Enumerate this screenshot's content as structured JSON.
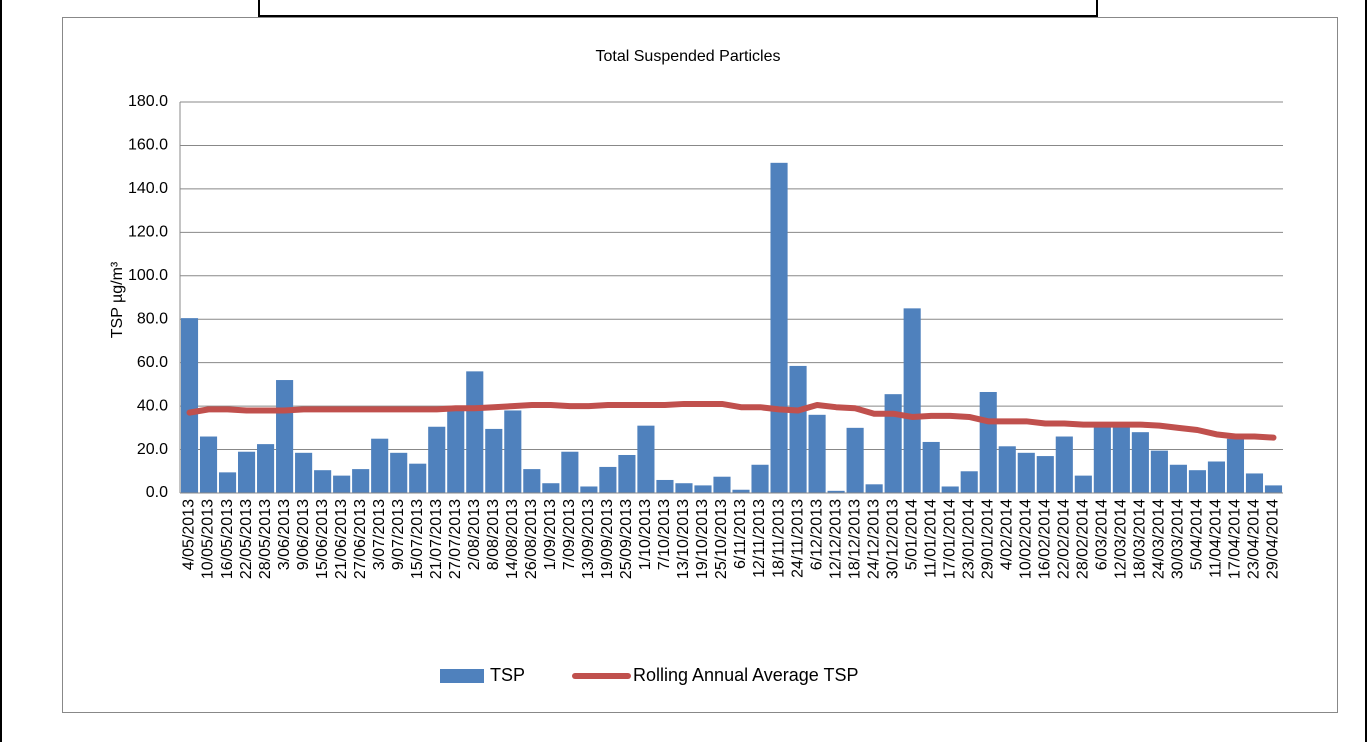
{
  "chart_data": {
    "type": "bar",
    "title": "Total Suspended Particles",
    "y_label": "TSP µg/m³",
    "categories": [
      "4/05/2013",
      "10/05/2013",
      "16/05/2013",
      "22/05/2013",
      "28/05/2013",
      "3/06/2013",
      "9/06/2013",
      "15/06/2013",
      "21/06/2013",
      "27/06/2013",
      "3/07/2013",
      "9/07/2013",
      "15/07/2013",
      "21/07/2013",
      "27/07/2013",
      "2/08/2013",
      "8/08/2013",
      "14/08/2013",
      "26/08/2013",
      "1/09/2013",
      "7/09/2013",
      "13/09/2013",
      "19/09/2013",
      "25/09/2013",
      "1/10/2013",
      "7/10/2013",
      "13/10/2013",
      "19/10/2013",
      "25/10/2013",
      "6/11/2013",
      "12/11/2013",
      "18/11/2013",
      "24/11/2013",
      "6/12/2013",
      "12/12/2013",
      "18/12/2013",
      "24/12/2013",
      "30/12/2013",
      "5/01/2014",
      "11/01/2014",
      "17/01/2014",
      "23/01/2014",
      "29/01/2014",
      "4/02/2014",
      "10/02/2014",
      "16/02/2014",
      "22/02/2014",
      "28/02/2014",
      "6/03/2014",
      "12/03/2014",
      "18/03/2014",
      "24/03/2014",
      "30/03/2014",
      "5/04/2014",
      "11/04/2014",
      "17/04/2014",
      "23/04/2014",
      "29/04/2014"
    ],
    "series": [
      {
        "name": "TSP",
        "type": "bar",
        "color": "#4f81bd",
        "values": [
          80.5,
          26,
          9.5,
          19,
          22.5,
          52,
          18.5,
          10.5,
          8,
          11,
          25,
          18.5,
          13.5,
          30.5,
          38,
          56,
          29.5,
          38,
          11,
          4.5,
          19,
          3,
          12,
          17.5,
          31,
          6,
          4.5,
          3.5,
          7.5,
          1.5,
          13,
          152,
          58.5,
          36,
          1,
          30,
          4,
          45.5,
          85,
          23.5,
          3,
          10,
          46.5,
          21.5,
          18.5,
          17,
          26,
          8,
          31,
          32,
          28,
          19.5,
          13,
          10.5,
          14.5,
          25,
          9,
          3.5
        ]
      },
      {
        "name": "Rolling Annual Average TSP",
        "type": "line",
        "color": "#c0504d",
        "values": [
          37,
          38.5,
          38.5,
          38,
          38,
          38,
          38.5,
          38.5,
          38.5,
          38.5,
          38.5,
          38.5,
          38.5,
          38.5,
          39,
          39,
          39.5,
          40,
          40.5,
          40.5,
          40,
          40,
          40.5,
          40.5,
          40.5,
          40.5,
          41,
          41,
          41,
          39.5,
          39.5,
          38.5,
          38,
          40.5,
          39.5,
          39,
          36.5,
          36.5,
          35,
          35.5,
          35.5,
          35,
          33,
          33,
          33,
          32,
          32,
          31.5,
          31.5,
          31.5,
          31.5,
          31,
          30,
          29,
          27,
          26,
          26,
          25.5
        ]
      }
    ],
    "ylim": [
      0,
      180
    ],
    "yticks": [
      {
        "value": 0,
        "label": "0.0"
      },
      {
        "value": 20,
        "label": "20.0"
      },
      {
        "value": 40,
        "label": "40.0"
      },
      {
        "value": 60,
        "label": "60.0"
      },
      {
        "value": 80,
        "label": "80.0"
      },
      {
        "value": 100,
        "label": "100.0"
      },
      {
        "value": 120,
        "label": "120.0"
      },
      {
        "value": 140,
        "label": "140.0"
      },
      {
        "value": 160,
        "label": "160.0"
      },
      {
        "value": 180,
        "label": "180.0"
      }
    ],
    "grid": true,
    "legend": "bottom"
  }
}
